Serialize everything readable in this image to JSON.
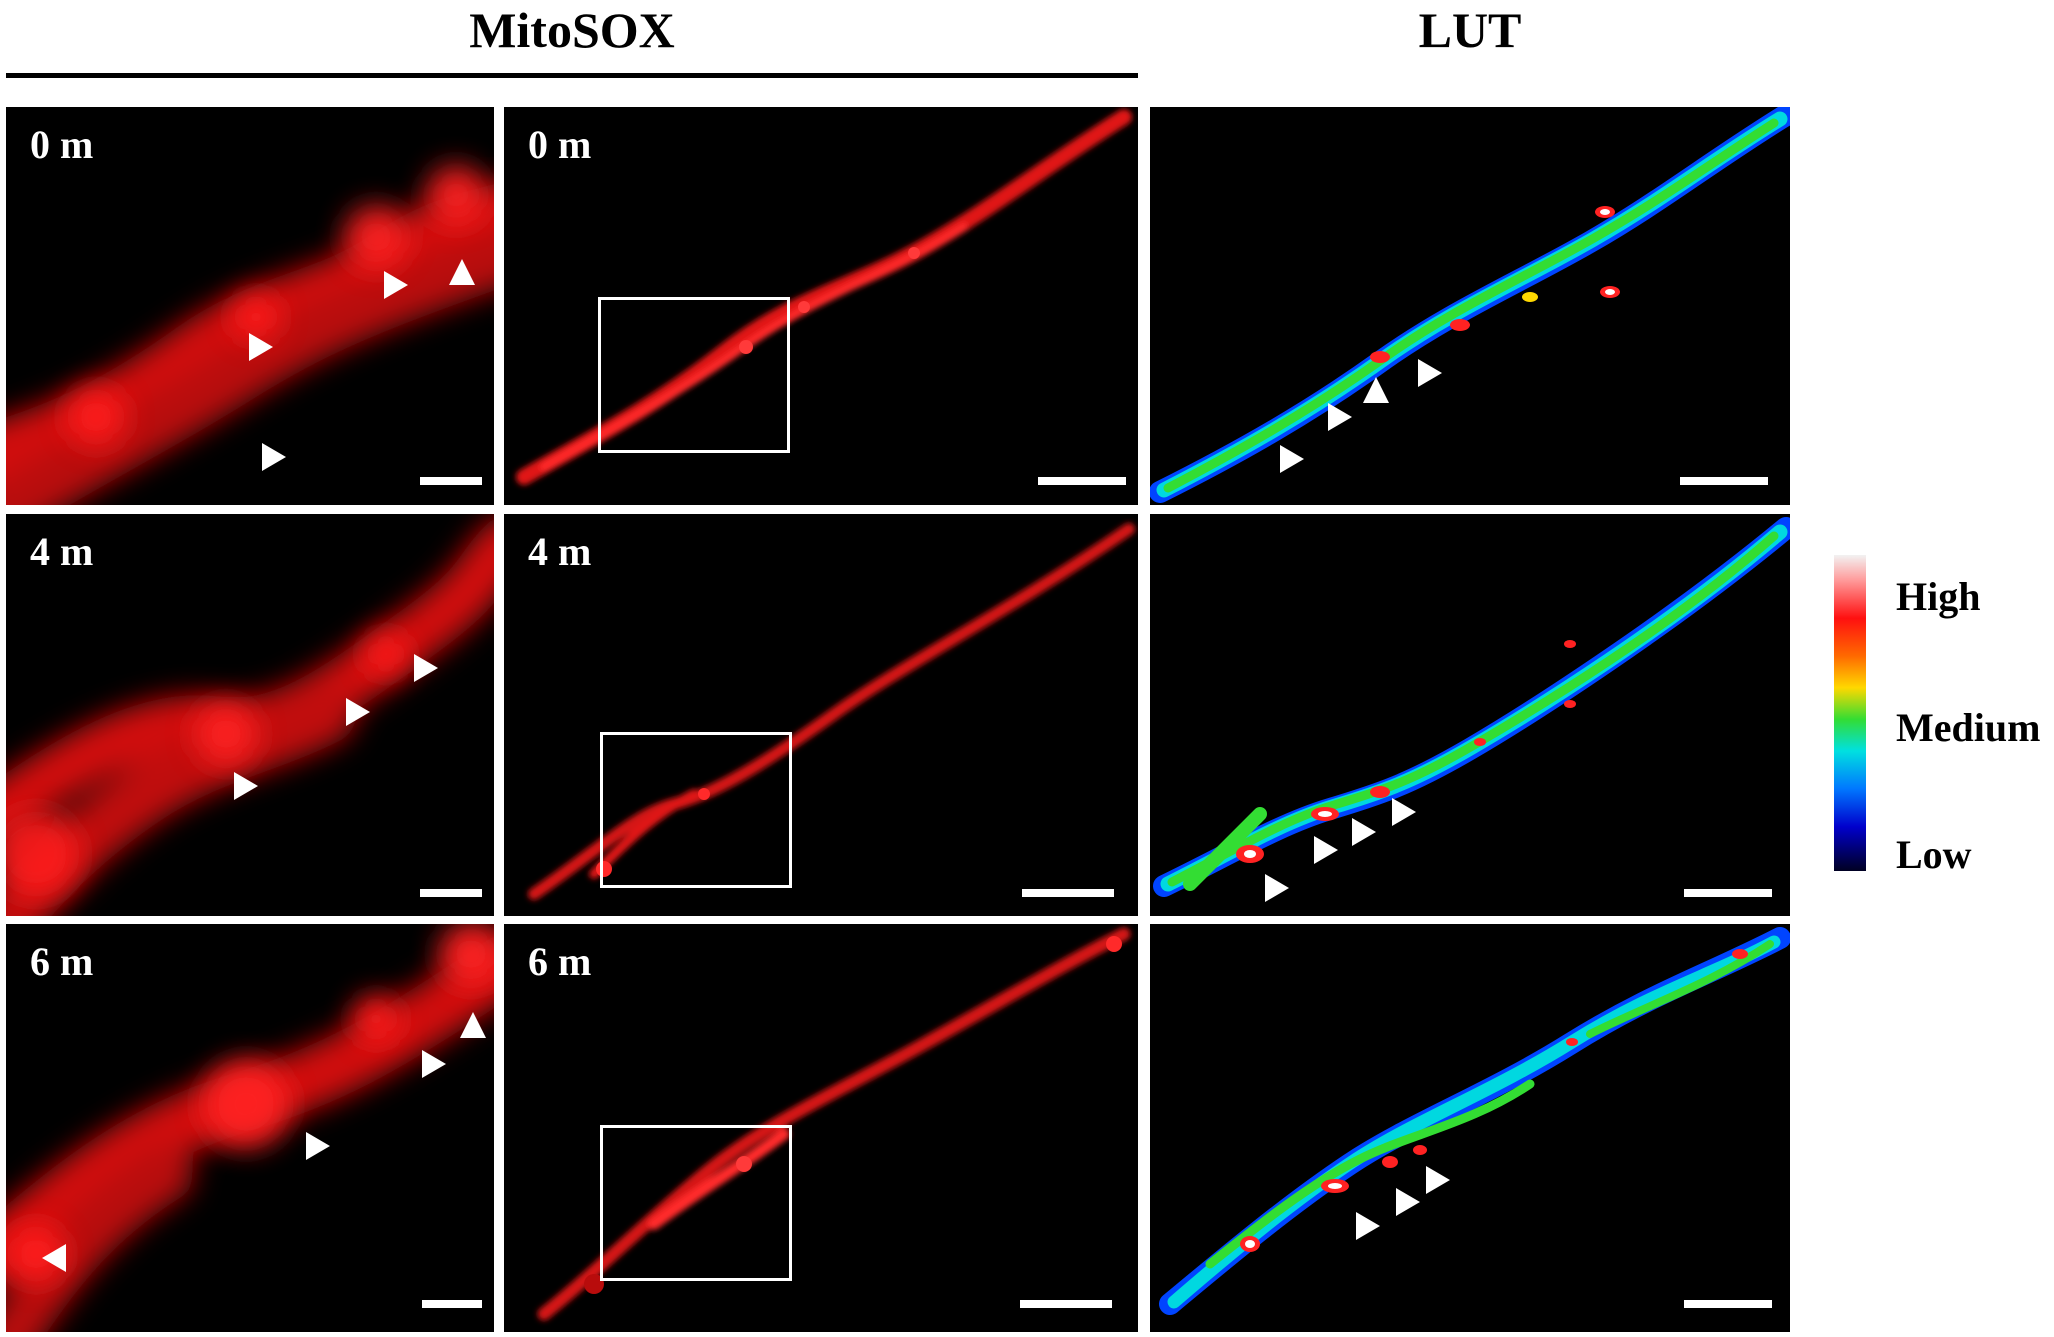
{
  "headers": {
    "mitosox": "MitoSOX",
    "lut": "LUT"
  },
  "rows": [
    {
      "time": "0 m"
    },
    {
      "time": "4 m"
    },
    {
      "time": "6 m"
    }
  ],
  "legend": {
    "high": "High",
    "medium": "Medium",
    "low": "Low"
  },
  "colors": {
    "mitosox_signal": "#ff1a1a",
    "background": "#000000",
    "annotation": "#ffffff",
    "lut_low": "#0000cc",
    "lut_medium": "#33dd33",
    "lut_high": "#f2f2f2"
  }
}
